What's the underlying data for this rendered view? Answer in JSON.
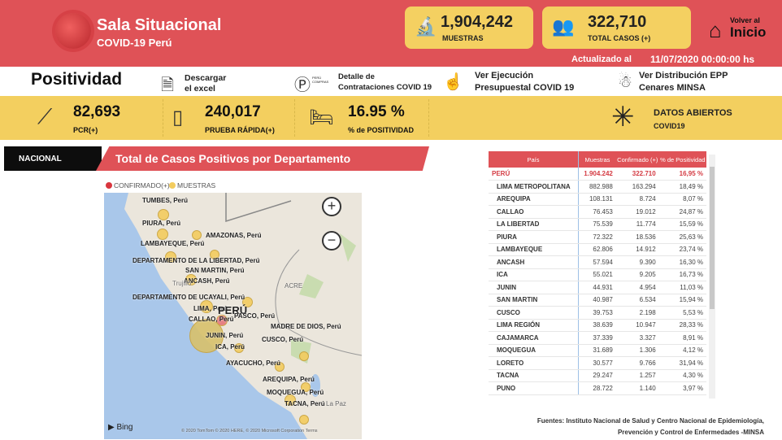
{
  "header": {
    "title": "Sala Situacional",
    "subtitle": "COVID-19 Perú",
    "muestras_value": "1,904,242",
    "muestras_label": "MUESTRAS",
    "casos_value": "322,710",
    "casos_label": "TOTAL CASOS (+)",
    "volver": "Volver al",
    "inicio": "Inicio",
    "updated_label": "Actualizado al",
    "updated_value": "11/07/2020 00:00:00 hs"
  },
  "links": {
    "page_title": "Positividad",
    "excel": [
      "Descargar",
      "el excel"
    ],
    "contrataciones": [
      "Detalle de",
      "Contrataciones COVID 19"
    ],
    "ejecucion": [
      "Ver Ejecución",
      "Presupuestal COVID 19"
    ],
    "epp": [
      "Ver Distribución EPP",
      "Cenares MINSA"
    ],
    "perucompras": "PERÚ COMPRAS"
  },
  "kpis": {
    "pcr_value": "82,693",
    "pcr_label": "PCR(+)",
    "rapida_value": "240,017",
    "rapida_label": "PRUEBA RÁPIDA(+)",
    "pos_value": "16.95 %",
    "pos_label": "% de POSITIVIDAD",
    "datos": "DATOS ABIERTOS",
    "datos_sub": "COVID19"
  },
  "section": {
    "nacional": "NACIONAL",
    "title": "Total de Casos Positivos por Departamento"
  },
  "legend": {
    "confirmado": "CONFIRMADO(+)",
    "muestras": "MUESTRAS",
    "confirmado_color": "#d9363e",
    "muestras_color": "#f3cc5e"
  },
  "map": {
    "labels": [
      "TUMBES, Perú",
      "PIURA, Perú",
      "AMAZONAS, Perú",
      "LAMBAYEQUE, Perú",
      "DEPARTAMENTO DE LA LIBERTAD, Perú",
      "SAN MARTIN, Perú",
      "ANCASH, Perú",
      "DEPARTAMENTO DE UCAYALI, Perú",
      "LIMA, Perú",
      "CALLAO, Perú",
      "PASCO, Perú",
      "MADRE DE DIOS, Perú",
      "JUNIN, Perú",
      "CUSCO, Perú",
      "ICA, Perú",
      "AYACUCHO, Perú",
      "AREQUIPA, Perú",
      "MOQUEGUA, Perú",
      "TACNA, Perú"
    ],
    "country": "PERÚ",
    "acre": "ACRE",
    "trujillo": "Trujillo",
    "lapaz": "La Paz",
    "bing": "Bing",
    "copyright": "© 2020 TomTom © 2020 HERE, © 2020 Microsoft Corporation  Terms",
    "zoom_in": "+",
    "zoom_out": "−"
  },
  "table": {
    "headers": [
      "País",
      "Muestras",
      "Confirmado (+)",
      "% de Positividad"
    ],
    "rows": [
      [
        "PERÚ",
        "1.904.242",
        "322.710",
        "16,95 %"
      ],
      [
        "LIMA METROPOLITANA",
        "882.988",
        "163.294",
        "18,49 %"
      ],
      [
        "AREQUIPA",
        "108.131",
        "8.724",
        "8,07 %"
      ],
      [
        "CALLAO",
        "76.453",
        "19.012",
        "24,87 %"
      ],
      [
        "LA LIBERTAD",
        "75.539",
        "11.774",
        "15,59 %"
      ],
      [
        "PIURA",
        "72.322",
        "18.536",
        "25,63 %"
      ],
      [
        "LAMBAYEQUE",
        "62.806",
        "14.912",
        "23,74 %"
      ],
      [
        "ANCASH",
        "57.594",
        "9.390",
        "16,30 %"
      ],
      [
        "ICA",
        "55.021",
        "9.205",
        "16,73 %"
      ],
      [
        "JUNIN",
        "44.931",
        "4.954",
        "11,03 %"
      ],
      [
        "SAN MARTIN",
        "40.987",
        "6.534",
        "15,94 %"
      ],
      [
        "CUSCO",
        "39.753",
        "2.198",
        "5,53 %"
      ],
      [
        "LIMA REGIÓN",
        "38.639",
        "10.947",
        "28,33 %"
      ],
      [
        "CAJAMARCA",
        "37.339",
        "3.327",
        "8,91 %"
      ],
      [
        "MOQUEGUA",
        "31.689",
        "1.306",
        "4,12 %"
      ],
      [
        "LORETO",
        "30.577",
        "9.766",
        "31,94 %"
      ],
      [
        "TACNA",
        "29.247",
        "1.257",
        "4,30 %"
      ],
      [
        "PUNO",
        "28.722",
        "1.140",
        "3,97 %"
      ]
    ]
  },
  "footer": {
    "line1": "Fuentes: Instituto Nacional de Salud y Centro Nacional de Epidemiología,",
    "line2": "Prevención y Control de Enfermedades -MINSA"
  }
}
